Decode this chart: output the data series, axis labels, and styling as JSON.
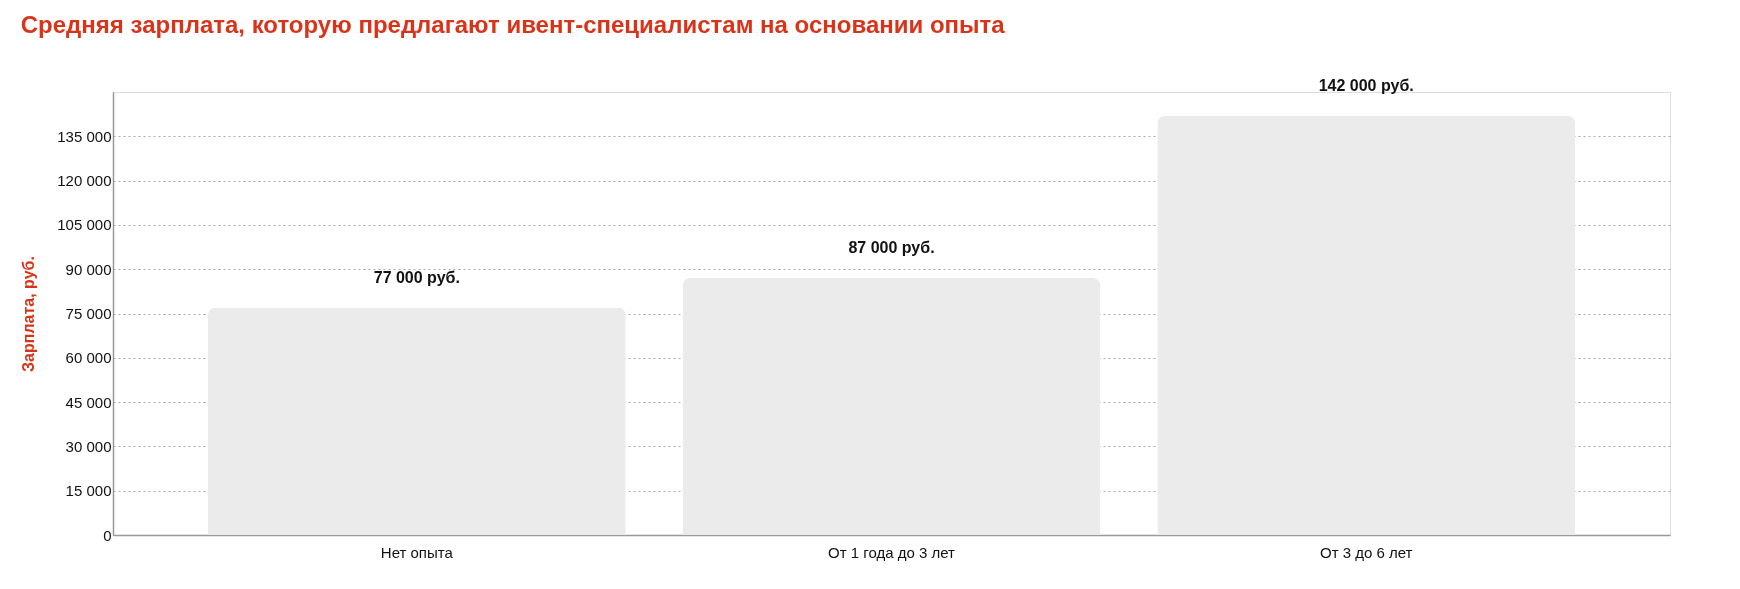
{
  "chart_data": {
    "type": "bar",
    "title": "Средняя зарплата, которую предлагают ивент-специалистам на основании опыта",
    "ylabel": "Зарплата, руб.",
    "categories": [
      "Нет опыта",
      "От 1 года до 3 лет",
      "От 3 до 6 лет"
    ],
    "values": [
      77000,
      87000,
      142000
    ],
    "color": "#ebebeb",
    "value_labels": [
      "77 000 руб.",
      "87 000 руб.",
      "142 000 руб."
    ],
    "ylim": [
      0,
      150000
    ],
    "yticks": [
      {
        "value": 0,
        "label": "0"
      },
      {
        "value": 15000,
        "label": "15 000"
      },
      {
        "value": 30000,
        "label": "30 000"
      },
      {
        "value": 45000,
        "label": "45 000"
      },
      {
        "value": 60000,
        "label": "60 000"
      },
      {
        "value": 75000,
        "label": "75 000"
      },
      {
        "value": 90000,
        "label": "90 000"
      },
      {
        "value": 105000,
        "label": "105 000"
      },
      {
        "value": 120000,
        "label": "120 000"
      },
      {
        "value": 135000,
        "label": "135 000"
      }
    ],
    "grid": "y"
  }
}
